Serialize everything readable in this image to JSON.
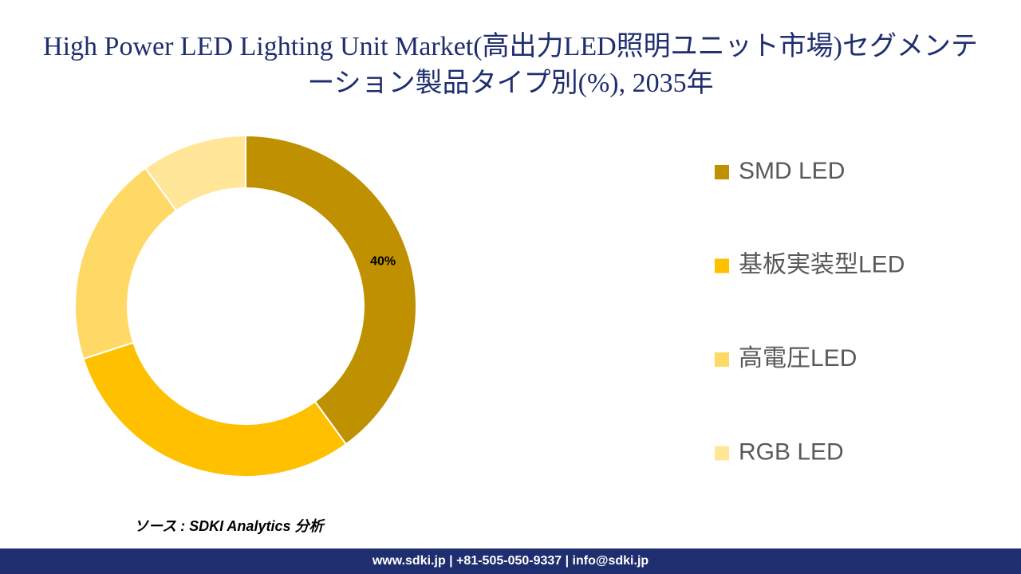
{
  "chart_data": {
    "type": "donut",
    "title": "High Power LED Lighting Unit Market(高出力LED照明ユニット市場)セグメンテーション製品タイプ別(%), 2035年",
    "categories": [
      "SMD LED",
      "基板実装型LED",
      "高電圧LED",
      "RGB LED"
    ],
    "values": [
      40,
      30,
      20,
      10
    ],
    "value_labels": [
      "40%",
      null,
      null,
      null
    ],
    "colors": [
      "#bf9000",
      "#ffc000",
      "#ffd966",
      "#ffe699"
    ],
    "legend": "right",
    "source": "ソース : SDKI Analytics 分析",
    "footer": "www.sdki.jp | +81-505-050-9337 | info@sdki.jp"
  }
}
